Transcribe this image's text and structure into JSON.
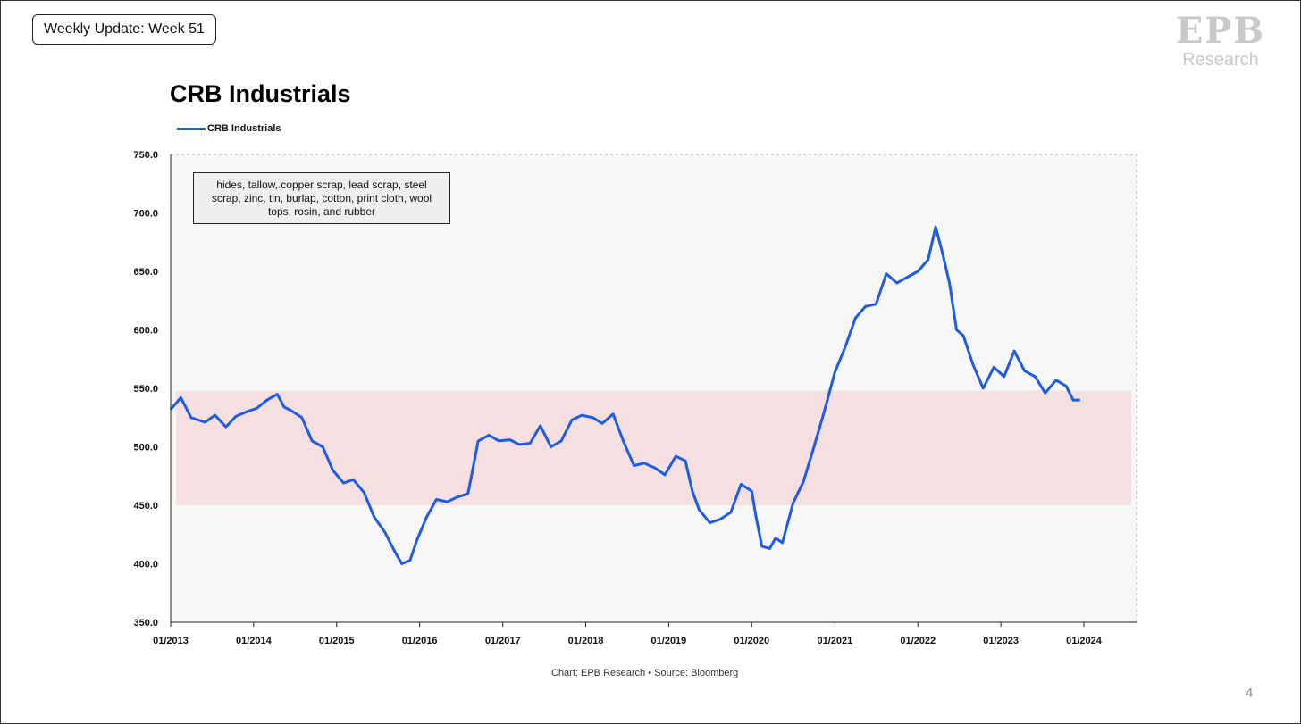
{
  "header": {
    "week_label": "Weekly Update: Week 51",
    "logo_text": "EPB",
    "logo_subtext": "Research"
  },
  "footer": {
    "source": "Chart: EPB Research  •  Source: Bloomberg",
    "page_number": "4"
  },
  "colors": {
    "line": "#1f5ce0",
    "band": "#f5dfe1",
    "plot_bg": "#f7f7f7"
  },
  "chart_data": {
    "type": "line",
    "title": "CRB Industrials",
    "legend": "top-left",
    "annotation": "hides, tallow, copper scrap, lead scrap, steel scrap, zinc, tin, burlap, cotton, print cloth, wool tops, rosin, and rubber",
    "xlabel": "",
    "ylabel": "",
    "ylim": [
      350,
      750
    ],
    "xlim": [
      "2013-01-01",
      "2024-08-20"
    ],
    "yticks": [
      "350.0",
      "400.0",
      "450.0",
      "500.0",
      "550.0",
      "600.0",
      "650.0",
      "700.0",
      "750.0"
    ],
    "xticks": [
      "01/2013",
      "01/2014",
      "01/2015",
      "01/2016",
      "01/2017",
      "01/2018",
      "01/2019",
      "01/2020",
      "01/2021",
      "01/2022",
      "01/2023",
      "01/2024"
    ],
    "shaded_band": [
      450,
      548
    ],
    "grid": false,
    "series": [
      {
        "name": "CRB Industrials",
        "x": [
          "2013-01-01",
          "2013-02-15",
          "2013-04-01",
          "2013-06-01",
          "2013-07-15",
          "2013-09-01",
          "2013-10-15",
          "2013-12-01",
          "2014-01-15",
          "2014-03-01",
          "2014-04-15",
          "2014-05-15",
          "2014-06-15",
          "2014-08-01",
          "2014-09-15",
          "2014-11-01",
          "2014-12-15",
          "2015-02-01",
          "2015-03-15",
          "2015-05-01",
          "2015-06-15",
          "2015-08-01",
          "2015-09-15",
          "2015-10-15",
          "2015-11-20",
          "2015-12-20",
          "2016-02-01",
          "2016-03-15",
          "2016-05-01",
          "2016-06-15",
          "2016-08-01",
          "2016-09-15",
          "2016-11-01",
          "2016-12-15",
          "2017-02-01",
          "2017-03-15",
          "2017-05-01",
          "2017-06-15",
          "2017-08-01",
          "2017-09-15",
          "2017-11-01",
          "2017-12-15",
          "2018-02-01",
          "2018-03-15",
          "2018-05-01",
          "2018-06-15",
          "2018-08-01",
          "2018-09-15",
          "2018-11-01",
          "2018-12-15",
          "2019-02-01",
          "2019-03-15",
          "2019-04-15",
          "2019-05-15",
          "2019-07-01",
          "2019-08-15",
          "2019-10-01",
          "2019-11-15",
          "2020-01-01",
          "2020-01-20",
          "2020-02-15",
          "2020-03-20",
          "2020-04-15",
          "2020-05-15",
          "2020-07-01",
          "2020-08-15",
          "2020-10-01",
          "2020-11-15",
          "2021-01-01",
          "2021-02-15",
          "2021-04-01",
          "2021-05-15",
          "2021-07-01",
          "2021-08-15",
          "2021-10-01",
          "2021-11-15",
          "2022-01-01",
          "2022-02-15",
          "2022-03-20",
          "2022-04-20",
          "2022-05-20",
          "2022-06-20",
          "2022-07-20",
          "2022-09-01",
          "2022-10-15",
          "2022-12-01",
          "2023-01-15",
          "2023-03-01",
          "2023-04-15",
          "2023-06-01",
          "2023-07-15",
          "2023-09-01",
          "2023-10-15",
          "2023-11-15",
          "2023-12-15"
        ],
        "y": [
          532,
          542,
          525,
          521,
          527,
          517,
          526,
          530,
          533,
          540,
          545,
          534,
          531,
          525,
          505,
          500,
          480,
          469,
          472,
          461,
          440,
          427,
          410,
          400,
          403,
          420,
          440,
          455,
          453,
          457,
          460,
          505,
          510,
          505,
          506,
          502,
          503,
          518,
          500,
          505,
          523,
          527,
          525,
          520,
          528,
          505,
          484,
          486,
          482,
          476,
          492,
          488,
          462,
          446,
          435,
          438,
          444,
          468,
          462,
          440,
          415,
          413,
          422,
          418,
          452,
          470,
          500,
          530,
          564,
          585,
          610,
          620,
          622,
          648,
          640,
          645,
          650,
          660,
          688,
          665,
          640,
          600,
          595,
          570,
          550,
          568,
          560,
          582,
          565,
          560,
          546,
          557,
          552,
          540,
          540
        ]
      }
    ]
  }
}
